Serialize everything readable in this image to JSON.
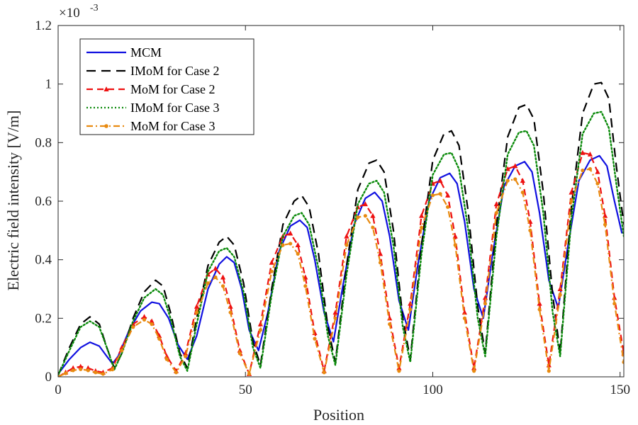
{
  "chart_data": {
    "type": "line",
    "xlabel": "Position",
    "ylabel": "Electric field intensity [V/m]",
    "exponent_label": "×10",
    "exponent_power": "-3",
    "xlim": [
      0,
      151
    ],
    "ylim": [
      0,
      1.2
    ],
    "xticks": [
      0,
      50,
      100,
      150
    ],
    "yticks": [
      0,
      0.2,
      0.4,
      0.6,
      0.8,
      1,
      1.2
    ],
    "xtick_labels": [
      "0",
      "50",
      "100",
      "150"
    ],
    "ytick_labels": [
      "0",
      "0.2",
      "0.4",
      "0.6",
      "0.8",
      "1",
      "1.2"
    ],
    "legend_position": "top-left",
    "series": [
      {
        "name": "MCM",
        "style": "solid",
        "color": "#1010e0",
        "marker": "none",
        "points": [
          [
            0,
            0.01
          ],
          [
            3,
            0.06
          ],
          [
            6,
            0.1
          ],
          [
            8.5,
            0.118
          ],
          [
            11,
            0.105
          ],
          [
            13,
            0.07
          ],
          [
            14.5,
            0.045
          ],
          [
            16,
            0.07
          ],
          [
            19,
            0.16
          ],
          [
            22,
            0.225
          ],
          [
            25,
            0.255
          ],
          [
            27,
            0.25
          ],
          [
            29.5,
            0.2
          ],
          [
            32,
            0.11
          ],
          [
            34.5,
            0.06
          ],
          [
            37,
            0.14
          ],
          [
            40,
            0.3
          ],
          [
            43,
            0.385
          ],
          [
            45,
            0.41
          ],
          [
            47,
            0.39
          ],
          [
            49,
            0.3
          ],
          [
            51,
            0.16
          ],
          [
            53.5,
            0.09
          ],
          [
            56,
            0.22
          ],
          [
            59,
            0.43
          ],
          [
            62,
            0.515
          ],
          [
            64.5,
            0.535
          ],
          [
            66.5,
            0.51
          ],
          [
            68.5,
            0.4
          ],
          [
            71,
            0.22
          ],
          [
            73.5,
            0.12
          ],
          [
            76,
            0.31
          ],
          [
            79,
            0.52
          ],
          [
            82,
            0.61
          ],
          [
            84.5,
            0.63
          ],
          [
            86.5,
            0.6
          ],
          [
            88.5,
            0.48
          ],
          [
            91,
            0.26
          ],
          [
            93.5,
            0.16
          ],
          [
            96,
            0.38
          ],
          [
            99,
            0.6
          ],
          [
            102,
            0.68
          ],
          [
            104.5,
            0.695
          ],
          [
            106.5,
            0.66
          ],
          [
            108.5,
            0.53
          ],
          [
            111,
            0.3
          ],
          [
            113.5,
            0.2
          ],
          [
            116,
            0.42
          ],
          [
            119,
            0.65
          ],
          [
            122,
            0.72
          ],
          [
            124.5,
            0.735
          ],
          [
            126.5,
            0.7
          ],
          [
            128.5,
            0.56
          ],
          [
            131,
            0.33
          ],
          [
            133.5,
            0.235
          ],
          [
            136,
            0.44
          ],
          [
            139,
            0.67
          ],
          [
            142,
            0.74
          ],
          [
            144.5,
            0.755
          ],
          [
            146.5,
            0.72
          ],
          [
            148.5,
            0.6
          ],
          [
            150.5,
            0.49
          ]
        ]
      },
      {
        "name": "IMoM for Case 2",
        "style": "dashed",
        "color": "#000000",
        "marker": "none",
        "points": [
          [
            0,
            0.005
          ],
          [
            3,
            0.1
          ],
          [
            6,
            0.18
          ],
          [
            8.5,
            0.205
          ],
          [
            11,
            0.18
          ],
          [
            13,
            0.1
          ],
          [
            15,
            0.03
          ],
          [
            17,
            0.08
          ],
          [
            20,
            0.2
          ],
          [
            23,
            0.29
          ],
          [
            26,
            0.33
          ],
          [
            28,
            0.31
          ],
          [
            30,
            0.22
          ],
          [
            32.5,
            0.08
          ],
          [
            34.5,
            0.03
          ],
          [
            37,
            0.2
          ],
          [
            40,
            0.38
          ],
          [
            43,
            0.46
          ],
          [
            45,
            0.48
          ],
          [
            47,
            0.45
          ],
          [
            49.5,
            0.32
          ],
          [
            52,
            0.12
          ],
          [
            54,
            0.04
          ],
          [
            57,
            0.3
          ],
          [
            60,
            0.52
          ],
          [
            63,
            0.6
          ],
          [
            65,
            0.62
          ],
          [
            67,
            0.58
          ],
          [
            69.5,
            0.42
          ],
          [
            72,
            0.17
          ],
          [
            74,
            0.05
          ],
          [
            77,
            0.38
          ],
          [
            80,
            0.64
          ],
          [
            83,
            0.73
          ],
          [
            85,
            0.74
          ],
          [
            87,
            0.7
          ],
          [
            89.5,
            0.5
          ],
          [
            92,
            0.2
          ],
          [
            94,
            0.06
          ],
          [
            97,
            0.45
          ],
          [
            100,
            0.74
          ],
          [
            103,
            0.83
          ],
          [
            105,
            0.84
          ],
          [
            107,
            0.79
          ],
          [
            109.5,
            0.56
          ],
          [
            112,
            0.24
          ],
          [
            114,
            0.08
          ],
          [
            117,
            0.52
          ],
          [
            120,
            0.82
          ],
          [
            123,
            0.92
          ],
          [
            125,
            0.93
          ],
          [
            127,
            0.88
          ],
          [
            129.5,
            0.63
          ],
          [
            132,
            0.28
          ],
          [
            134,
            0.08
          ],
          [
            137,
            0.58
          ],
          [
            140,
            0.9
          ],
          [
            143,
            1.0
          ],
          [
            145,
            1.005
          ],
          [
            147,
            0.95
          ],
          [
            149,
            0.72
          ],
          [
            151,
            0.52
          ]
        ]
      },
      {
        "name": "MoM for Case 2",
        "style": "dashed",
        "color": "#ee1111",
        "marker": "triangle",
        "points": [
          [
            0,
            0.0
          ],
          [
            2,
            0.015
          ],
          [
            4,
            0.03
          ],
          [
            6,
            0.035
          ],
          [
            8,
            0.03
          ],
          [
            10,
            0.02
          ],
          [
            12,
            0.015
          ],
          [
            14.5,
            0.03
          ],
          [
            17,
            0.1
          ],
          [
            20,
            0.18
          ],
          [
            23,
            0.205
          ],
          [
            25,
            0.19
          ],
          [
            27,
            0.14
          ],
          [
            29,
            0.07
          ],
          [
            31.5,
            0.02
          ],
          [
            34,
            0.08
          ],
          [
            37,
            0.24
          ],
          [
            40,
            0.35
          ],
          [
            42,
            0.37
          ],
          [
            44,
            0.34
          ],
          [
            46,
            0.24
          ],
          [
            48.5,
            0.09
          ],
          [
            51,
            0.01
          ],
          [
            54,
            0.18
          ],
          [
            57,
            0.39
          ],
          [
            60,
            0.48
          ],
          [
            62,
            0.49
          ],
          [
            64,
            0.45
          ],
          [
            66,
            0.34
          ],
          [
            68.5,
            0.15
          ],
          [
            71,
            0.02
          ],
          [
            74,
            0.22
          ],
          [
            77,
            0.48
          ],
          [
            80,
            0.58
          ],
          [
            82,
            0.59
          ],
          [
            84,
            0.55
          ],
          [
            86,
            0.42
          ],
          [
            88.5,
            0.2
          ],
          [
            91,
            0.03
          ],
          [
            94,
            0.25
          ],
          [
            97,
            0.55
          ],
          [
            100,
            0.66
          ],
          [
            102,
            0.67
          ],
          [
            104,
            0.62
          ],
          [
            106,
            0.48
          ],
          [
            108.5,
            0.22
          ],
          [
            111,
            0.03
          ],
          [
            114,
            0.27
          ],
          [
            117,
            0.59
          ],
          [
            120,
            0.71
          ],
          [
            122,
            0.72
          ],
          [
            124,
            0.67
          ],
          [
            126,
            0.53
          ],
          [
            128.5,
            0.25
          ],
          [
            131,
            0.04
          ],
          [
            134,
            0.3
          ],
          [
            137,
            0.63
          ],
          [
            140,
            0.765
          ],
          [
            142,
            0.76
          ],
          [
            144,
            0.7
          ],
          [
            146,
            0.55
          ],
          [
            148.5,
            0.27
          ],
          [
            151,
            0.08
          ]
        ]
      },
      {
        "name": "IMoM for Case 3",
        "style": "dotted",
        "color": "#0a8a0a",
        "marker": "none",
        "points": [
          [
            0,
            0.005
          ],
          [
            3,
            0.09
          ],
          [
            6,
            0.17
          ],
          [
            8.5,
            0.19
          ],
          [
            11,
            0.17
          ],
          [
            13,
            0.1
          ],
          [
            15,
            0.025
          ],
          [
            17,
            0.08
          ],
          [
            20,
            0.19
          ],
          [
            23,
            0.27
          ],
          [
            26,
            0.3
          ],
          [
            28,
            0.28
          ],
          [
            30,
            0.2
          ],
          [
            32.5,
            0.07
          ],
          [
            34.5,
            0.02
          ],
          [
            37,
            0.18
          ],
          [
            40,
            0.36
          ],
          [
            43,
            0.43
          ],
          [
            45,
            0.44
          ],
          [
            47,
            0.41
          ],
          [
            49.5,
            0.29
          ],
          [
            52,
            0.1
          ],
          [
            54,
            0.03
          ],
          [
            57,
            0.28
          ],
          [
            60,
            0.48
          ],
          [
            63,
            0.55
          ],
          [
            65,
            0.56
          ],
          [
            67,
            0.52
          ],
          [
            69.5,
            0.37
          ],
          [
            72,
            0.14
          ],
          [
            74,
            0.04
          ],
          [
            77,
            0.35
          ],
          [
            80,
            0.59
          ],
          [
            83,
            0.66
          ],
          [
            85,
            0.67
          ],
          [
            87,
            0.63
          ],
          [
            89.5,
            0.45
          ],
          [
            92,
            0.17
          ],
          [
            94,
            0.05
          ],
          [
            97,
            0.42
          ],
          [
            100,
            0.69
          ],
          [
            103,
            0.76
          ],
          [
            105,
            0.765
          ],
          [
            107,
            0.71
          ],
          [
            109.5,
            0.5
          ],
          [
            112,
            0.2
          ],
          [
            114,
            0.07
          ],
          [
            117,
            0.48
          ],
          [
            120,
            0.76
          ],
          [
            123,
            0.835
          ],
          [
            125,
            0.84
          ],
          [
            127,
            0.79
          ],
          [
            129.5,
            0.56
          ],
          [
            132,
            0.22
          ],
          [
            134,
            0.07
          ],
          [
            137,
            0.54
          ],
          [
            140,
            0.83
          ],
          [
            143,
            0.9
          ],
          [
            145,
            0.905
          ],
          [
            147,
            0.85
          ],
          [
            149,
            0.66
          ],
          [
            151,
            0.48
          ]
        ]
      },
      {
        "name": "MoM for Case 3",
        "style": "dashdot",
        "color": "#e88a10",
        "marker": "circle",
        "points": [
          [
            0,
            0.0
          ],
          [
            2,
            0.012
          ],
          [
            4,
            0.022
          ],
          [
            6,
            0.026
          ],
          [
            8,
            0.022
          ],
          [
            10,
            0.015
          ],
          [
            12,
            0.01
          ],
          [
            14.5,
            0.025
          ],
          [
            17,
            0.09
          ],
          [
            20,
            0.17
          ],
          [
            23,
            0.195
          ],
          [
            25,
            0.18
          ],
          [
            27,
            0.13
          ],
          [
            29,
            0.06
          ],
          [
            31.5,
            0.015
          ],
          [
            34,
            0.07
          ],
          [
            37,
            0.22
          ],
          [
            40,
            0.32
          ],
          [
            42,
            0.34
          ],
          [
            44,
            0.31
          ],
          [
            46,
            0.22
          ],
          [
            48.5,
            0.08
          ],
          [
            51,
            0.01
          ],
          [
            54,
            0.16
          ],
          [
            57,
            0.36
          ],
          [
            60,
            0.45
          ],
          [
            62,
            0.455
          ],
          [
            64,
            0.42
          ],
          [
            66,
            0.31
          ],
          [
            68.5,
            0.13
          ],
          [
            71,
            0.015
          ],
          [
            74,
            0.2
          ],
          [
            77,
            0.45
          ],
          [
            80,
            0.545
          ],
          [
            82,
            0.55
          ],
          [
            84,
            0.51
          ],
          [
            86,
            0.39
          ],
          [
            88.5,
            0.18
          ],
          [
            91,
            0.02
          ],
          [
            94,
            0.23
          ],
          [
            97,
            0.51
          ],
          [
            100,
            0.62
          ],
          [
            102,
            0.625
          ],
          [
            104,
            0.58
          ],
          [
            106,
            0.45
          ],
          [
            108.5,
            0.2
          ],
          [
            111,
            0.02
          ],
          [
            114,
            0.25
          ],
          [
            117,
            0.56
          ],
          [
            120,
            0.67
          ],
          [
            122,
            0.675
          ],
          [
            124,
            0.63
          ],
          [
            126,
            0.5
          ],
          [
            128.5,
            0.23
          ],
          [
            131,
            0.02
          ],
          [
            134,
            0.28
          ],
          [
            137,
            0.6
          ],
          [
            140,
            0.705
          ],
          [
            142,
            0.71
          ],
          [
            144,
            0.66
          ],
          [
            146,
            0.52
          ],
          [
            148.5,
            0.25
          ],
          [
            151,
            0.05
          ]
        ]
      }
    ]
  }
}
